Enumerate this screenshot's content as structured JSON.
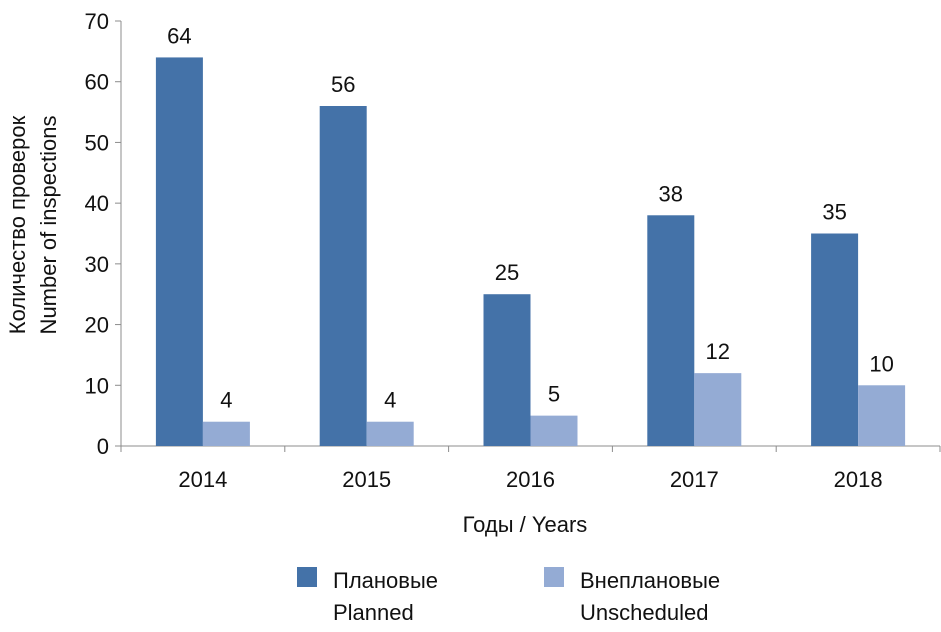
{
  "chart_data": {
    "type": "bar",
    "categories": [
      "2014",
      "2015",
      "2016",
      "2017",
      "2018"
    ],
    "series": [
      {
        "name": "Плановые",
        "name_en": "Planned",
        "color": "#4472A8",
        "values": [
          64,
          56,
          25,
          38,
          35
        ],
        "labels": [
          "64",
          "56",
          "25",
          "38",
          "35"
        ]
      },
      {
        "name": "Внеплановые",
        "name_en": "Unscheduled",
        "color": "#94ABD4",
        "values": [
          4,
          4,
          5,
          12,
          10
        ],
        "labels": [
          "4",
          "4",
          "5",
          "12",
          "10"
        ]
      }
    ],
    "xlabel": "Годы / Years",
    "ylabel_line1": "Количество проверок",
    "ylabel_line2": "Number of inspections",
    "ylim": [
      0,
      70
    ],
    "yticks": [
      0,
      10,
      20,
      30,
      40,
      50,
      60,
      70
    ],
    "ytick_labels": [
      "0",
      "10",
      "20",
      "30",
      "40",
      "50",
      "60",
      "70"
    ],
    "grid": false,
    "legend_position": "bottom"
  }
}
